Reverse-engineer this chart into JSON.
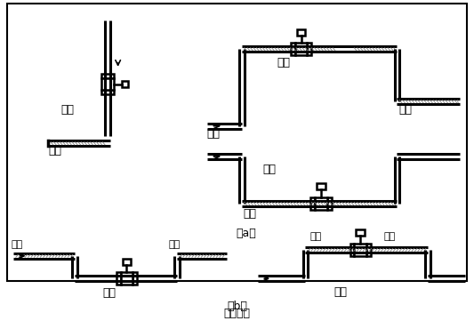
{
  "title": "图（四）",
  "line_color": "#000000",
  "lw_pipe": 2.2,
  "labels": {
    "correct": "正确",
    "wrong": "错误",
    "liquid": "液体",
    "bubble": "气泡",
    "a": "（a）",
    "b": "（b）"
  },
  "font_size": 9
}
